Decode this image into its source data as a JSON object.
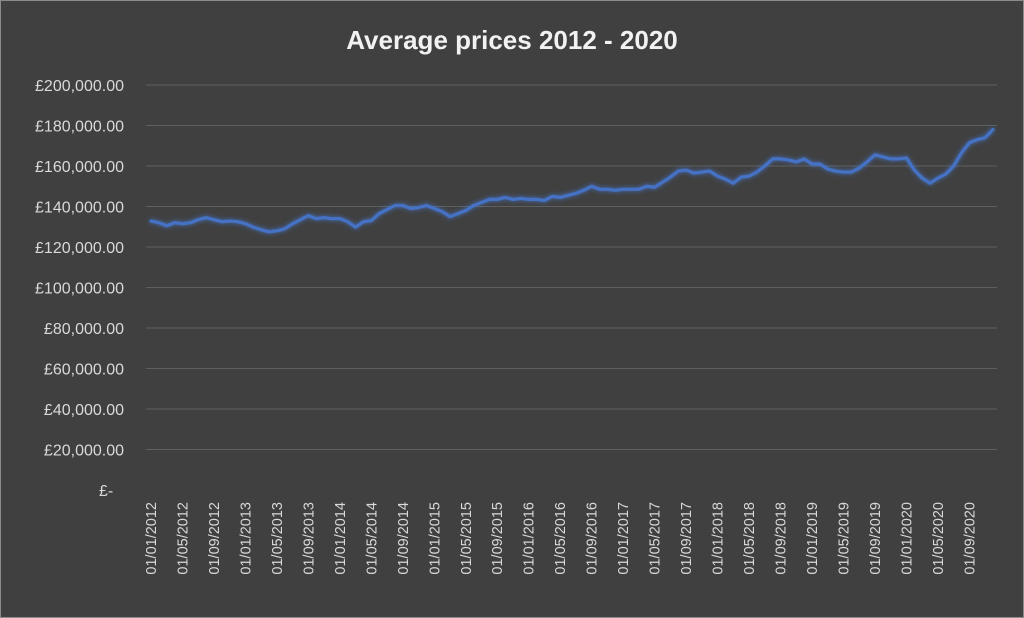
{
  "chart_data": {
    "type": "line",
    "title": "Average prices 2012 - 2020",
    "xlabel": "",
    "ylabel": "",
    "ylim": [
      0,
      200000
    ],
    "grid": true,
    "legend": "none",
    "y_ticks": [
      0,
      20000,
      40000,
      60000,
      80000,
      100000,
      120000,
      140000,
      160000,
      180000,
      200000
    ],
    "y_tick_labels": [
      "£-",
      "£20,000.00",
      "£40,000.00",
      "£60,000.00",
      "£80,000.00",
      "£100,000.00",
      "£120,000.00",
      "£140,000.00",
      "£160,000.00",
      "£180,000.00",
      "£200,000.00"
    ],
    "x_tick_labels": [
      "01/01/2012",
      "01/05/2012",
      "01/09/2012",
      "01/01/2013",
      "01/05/2013",
      "01/09/2013",
      "01/01/2014",
      "01/05/2014",
      "01/09/2014",
      "01/01/2015",
      "01/05/2015",
      "01/09/2015",
      "01/01/2016",
      "01/05/2016",
      "01/09/2016",
      "01/01/2017",
      "01/05/2017",
      "01/09/2017",
      "01/01/2018",
      "01/05/2018",
      "01/09/2018",
      "01/01/2019",
      "01/05/2019",
      "01/09/2019",
      "01/01/2020",
      "01/05/2020",
      "01/09/2020"
    ],
    "x_start": "01/01/2012",
    "x_end": "01/12/2020",
    "series_color": "#4472c4",
    "series": [
      {
        "values": [
          132800,
          132000,
          130500,
          132000,
          131500,
          132000,
          133500,
          134500,
          133500,
          132500,
          132800,
          132500,
          131500,
          129800,
          128500,
          127500,
          128000,
          129000,
          131500,
          133500,
          135500,
          134000,
          134500,
          134000,
          134000,
          132500,
          129800,
          132500,
          133000,
          136500,
          138500,
          140500,
          140500,
          139000,
          139500,
          140500,
          139000,
          137500,
          135000,
          136500,
          138000,
          140500,
          142000,
          143500,
          143500,
          144500,
          143500,
          144000,
          143500,
          143500,
          143000,
          145000,
          144500,
          145500,
          146500,
          148000,
          150000,
          148500,
          148500,
          148000,
          148500,
          148500,
          148500,
          150000,
          149500,
          152000,
          154500,
          157500,
          158000,
          156500,
          157000,
          157500,
          155000,
          153500,
          151500,
          154500,
          155000,
          157000,
          160000,
          163500,
          163500,
          163000,
          162000,
          163500,
          161000,
          161000,
          158500,
          157500,
          157000,
          157000,
          159000,
          162000,
          165500,
          164500,
          163500,
          163500,
          164000,
          158000,
          154000,
          151500,
          154000,
          156000,
          160000,
          166500,
          171500,
          173000,
          174000,
          178000
        ]
      }
    ]
  },
  "colors": {
    "background": "#404040",
    "border": "#8c8c8c",
    "gridline": "#5f5f5f",
    "text": "#d9d9d9",
    "title": "#f2f2f2",
    "line": "#4472c4"
  }
}
